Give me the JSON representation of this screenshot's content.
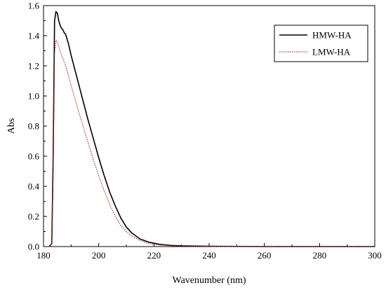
{
  "chart_data": {
    "type": "line",
    "xlabel": "Wavenumber (nm)",
    "ylabel": "Abs",
    "xlim": [
      180,
      300
    ],
    "ylim": [
      0.0,
      1.6
    ],
    "xticks": [
      "180",
      "200",
      "220",
      "240",
      "260",
      "280",
      "300"
    ],
    "yticks": [
      "0.0",
      "0.2",
      "0.4",
      "0.6",
      "0.8",
      "1.0",
      "1.2",
      "1.4",
      "1.6"
    ],
    "grid": false,
    "legend": "top-right",
    "series": [
      {
        "name": "HMW-HA",
        "color": "#000000",
        "style": "solid",
        "x": [
          182,
          183,
          183.5,
          184,
          184.5,
          185,
          185.5,
          186,
          186.5,
          187,
          187.5,
          188,
          189,
          190,
          192,
          194,
          196,
          198,
          200,
          202,
          204,
          206,
          208,
          210,
          212,
          215,
          218,
          222,
          226,
          230,
          240,
          260,
          300
        ],
        "y": [
          0.0,
          0.02,
          0.6,
          1.5,
          1.56,
          1.55,
          1.5,
          1.47,
          1.45,
          1.44,
          1.42,
          1.41,
          1.35,
          1.27,
          1.13,
          0.99,
          0.85,
          0.72,
          0.59,
          0.47,
          0.36,
          0.27,
          0.19,
          0.13,
          0.09,
          0.05,
          0.03,
          0.015,
          0.008,
          0.005,
          0.002,
          0.0,
          0.0
        ]
      },
      {
        "name": "LMW-HA",
        "color": "#b03a2e",
        "style": "dotted",
        "x": [
          182,
          183,
          183.5,
          184,
          184.5,
          185,
          185.5,
          186,
          187,
          188,
          189,
          190,
          192,
          194,
          196,
          198,
          200,
          202,
          204,
          206,
          208,
          210,
          212,
          215,
          218,
          222,
          226,
          230,
          240,
          260,
          300
        ],
        "y": [
          0.0,
          0.02,
          0.5,
          1.28,
          1.37,
          1.36,
          1.33,
          1.3,
          1.25,
          1.2,
          1.14,
          1.07,
          0.94,
          0.82,
          0.7,
          0.58,
          0.47,
          0.37,
          0.28,
          0.2,
          0.14,
          0.1,
          0.07,
          0.04,
          0.02,
          0.01,
          0.006,
          0.004,
          0.002,
          0.0,
          0.0
        ]
      }
    ]
  }
}
